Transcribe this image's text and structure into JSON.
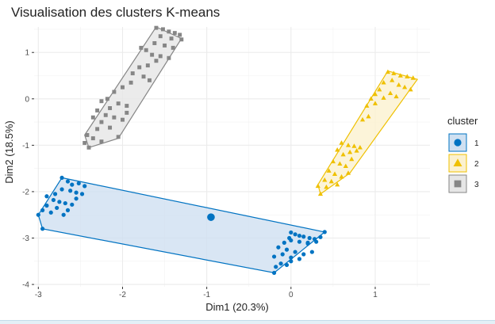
{
  "chart_data": {
    "type": "scatter",
    "title": "Visualisation des clusters K-means",
    "xlabel": "Dim1 (20.3%)",
    "ylabel": "Dim2 (18.5%)",
    "xlim": [
      -3.05,
      1.65
    ],
    "ylim": [
      -4.05,
      1.55
    ],
    "x_ticks": [
      -3,
      -2,
      -1,
      0,
      1
    ],
    "y_ticks": [
      -4,
      -3,
      -2,
      -1,
      0,
      1
    ],
    "x_tick_labels": [
      "-3",
      "-2",
      "-1",
      "0",
      "1"
    ],
    "y_tick_labels": [
      "-4",
      "-3",
      "-2",
      "-1",
      "0",
      "1"
    ],
    "grid": true,
    "legend": {
      "title": "cluster",
      "position": "right",
      "entries": [
        "1",
        "2",
        "3"
      ]
    },
    "series": [
      {
        "name": "1",
        "shape": "circle",
        "color": "#0073C2",
        "fill": "#cfe0f1",
        "hull": [
          [
            -2.72,
            -1.7
          ],
          [
            0.4,
            -2.87
          ],
          [
            -0.2,
            -3.75
          ],
          [
            -2.95,
            -2.8
          ],
          [
            -3.0,
            -2.5
          ]
        ],
        "centroid": [
          -0.95,
          -2.55
        ],
        "points": [
          [
            -2.72,
            -1.7
          ],
          [
            -2.65,
            -1.78
          ],
          [
            -2.6,
            -1.85
          ],
          [
            -2.52,
            -1.82
          ],
          [
            -2.45,
            -1.88
          ],
          [
            -2.72,
            -1.95
          ],
          [
            -2.62,
            -1.98
          ],
          [
            -2.55,
            -2.02
          ],
          [
            -2.48,
            -2.05
          ],
          [
            -2.8,
            -2.05
          ],
          [
            -2.9,
            -2.1
          ],
          [
            -2.82,
            -2.18
          ],
          [
            -2.75,
            -2.22
          ],
          [
            -2.68,
            -2.25
          ],
          [
            -2.6,
            -2.28
          ],
          [
            -2.78,
            -2.35
          ],
          [
            -2.85,
            -2.45
          ],
          [
            -2.95,
            -2.4
          ],
          [
            -2.7,
            -2.5
          ],
          [
            -3.0,
            -2.5
          ],
          [
            -2.95,
            -2.8
          ],
          [
            -2.9,
            -2.3
          ],
          [
            -2.65,
            -2.4
          ],
          [
            -2.55,
            -2.15
          ],
          [
            0.0,
            -2.88
          ],
          [
            0.05,
            -2.92
          ],
          [
            0.1,
            -2.95
          ],
          [
            0.15,
            -2.97
          ],
          [
            0.22,
            -3.0
          ],
          [
            0.28,
            -3.02
          ],
          [
            0.35,
            -2.98
          ],
          [
            0.4,
            -2.87
          ],
          [
            0.3,
            -3.08
          ],
          [
            0.2,
            -3.1
          ],
          [
            0.1,
            -3.08
          ],
          [
            0.0,
            -3.05
          ],
          [
            -0.08,
            -3.1
          ],
          [
            -0.15,
            -3.2
          ],
          [
            -0.05,
            -3.25
          ],
          [
            0.05,
            -3.3
          ],
          [
            0.15,
            -3.35
          ],
          [
            0.25,
            -3.3
          ],
          [
            -0.1,
            -3.35
          ],
          [
            -0.2,
            -3.4
          ],
          [
            0.0,
            -3.42
          ],
          [
            0.1,
            -3.45
          ],
          [
            -0.12,
            -3.55
          ],
          [
            -0.18,
            -3.62
          ],
          [
            -0.05,
            -3.58
          ],
          [
            0.0,
            -3.5
          ],
          [
            -0.2,
            -3.75
          ],
          [
            0.2,
            -3.12
          ],
          [
            -0.02,
            -3.0
          ]
        ]
      },
      {
        "name": "2",
        "shape": "triangle",
        "color": "#EFC000",
        "fill": "#fbf1cf",
        "hull": [
          [
            1.15,
            0.6
          ],
          [
            1.5,
            0.42
          ],
          [
            0.7,
            -1.6
          ],
          [
            0.35,
            -2.05
          ],
          [
            0.32,
            -1.85
          ]
        ],
        "points": [
          [
            1.15,
            0.58
          ],
          [
            1.22,
            0.55
          ],
          [
            1.3,
            0.5
          ],
          [
            1.38,
            0.48
          ],
          [
            1.45,
            0.45
          ],
          [
            1.2,
            0.4
          ],
          [
            1.1,
            0.35
          ],
          [
            1.28,
            0.3
          ],
          [
            1.35,
            0.25
          ],
          [
            1.42,
            0.2
          ],
          [
            1.05,
            0.2
          ],
          [
            1.0,
            0.1
          ],
          [
            1.18,
            0.12
          ],
          [
            1.25,
            0.05
          ],
          [
            1.1,
            0.02
          ],
          [
            0.95,
            0.0
          ],
          [
            1.0,
            -0.1
          ],
          [
            0.9,
            -0.15
          ],
          [
            0.92,
            -0.38
          ],
          [
            0.85,
            -0.45
          ],
          [
            0.6,
            -0.95
          ],
          [
            0.68,
            -1.0
          ],
          [
            0.75,
            -1.02
          ],
          [
            0.82,
            -1.05
          ],
          [
            0.78,
            -1.12
          ],
          [
            0.7,
            -1.15
          ],
          [
            0.62,
            -1.2
          ],
          [
            0.55,
            -1.1
          ],
          [
            0.5,
            -1.35
          ],
          [
            0.58,
            -1.4
          ],
          [
            0.65,
            -1.45
          ],
          [
            0.72,
            -1.3
          ],
          [
            0.45,
            -1.55
          ],
          [
            0.52,
            -1.62
          ],
          [
            0.6,
            -1.68
          ],
          [
            0.68,
            -1.6
          ],
          [
            0.4,
            -1.75
          ],
          [
            0.48,
            -1.78
          ],
          [
            0.55,
            -1.85
          ],
          [
            0.42,
            -1.9
          ],
          [
            0.32,
            -1.88
          ],
          [
            0.35,
            -2.05
          ]
        ]
      },
      {
        "name": "3",
        "shape": "square",
        "color": "#868686",
        "fill": "#e6e6e6",
        "hull": [
          [
            -1.6,
            1.55
          ],
          [
            -1.3,
            1.3
          ],
          [
            -2.05,
            -0.85
          ],
          [
            -2.4,
            -1.05
          ],
          [
            -2.45,
            -0.78
          ]
        ],
        "points": [
          [
            -1.6,
            1.53
          ],
          [
            -1.52,
            1.5
          ],
          [
            -1.45,
            1.45
          ],
          [
            -1.38,
            1.42
          ],
          [
            -1.32,
            1.38
          ],
          [
            -1.3,
            1.28
          ],
          [
            -1.42,
            1.3
          ],
          [
            -1.55,
            1.35
          ],
          [
            -1.62,
            1.2
          ],
          [
            -1.5,
            1.15
          ],
          [
            -1.4,
            1.1
          ],
          [
            -1.72,
            1.05
          ],
          [
            -1.78,
            1.1
          ],
          [
            -1.65,
            0.95
          ],
          [
            -1.55,
            0.92
          ],
          [
            -1.45,
            0.88
          ],
          [
            -1.6,
            0.82
          ],
          [
            -1.7,
            0.72
          ],
          [
            -1.8,
            0.68
          ],
          [
            -1.88,
            0.55
          ],
          [
            -1.75,
            0.48
          ],
          [
            -1.68,
            0.4
          ],
          [
            -1.9,
            0.35
          ],
          [
            -2.0,
            0.25
          ],
          [
            -2.1,
            0.15
          ],
          [
            -2.18,
            0.0
          ],
          [
            -2.25,
            -0.05
          ],
          [
            -2.05,
            -0.1
          ],
          [
            -1.95,
            -0.15
          ],
          [
            -2.15,
            -0.2
          ],
          [
            -2.3,
            -0.25
          ],
          [
            -2.2,
            -0.35
          ],
          [
            -2.1,
            -0.4
          ],
          [
            -2.0,
            -0.45
          ],
          [
            -2.35,
            -0.4
          ],
          [
            -2.25,
            -0.5
          ],
          [
            -2.15,
            -0.62
          ],
          [
            -2.3,
            -0.65
          ],
          [
            -2.42,
            -0.78
          ],
          [
            -2.35,
            -0.85
          ],
          [
            -2.25,
            -0.92
          ],
          [
            -2.05,
            -0.82
          ],
          [
            -2.4,
            -1.05
          ],
          [
            -2.45,
            -0.95
          ],
          [
            -1.95,
            -0.3
          ]
        ]
      }
    ]
  }
}
